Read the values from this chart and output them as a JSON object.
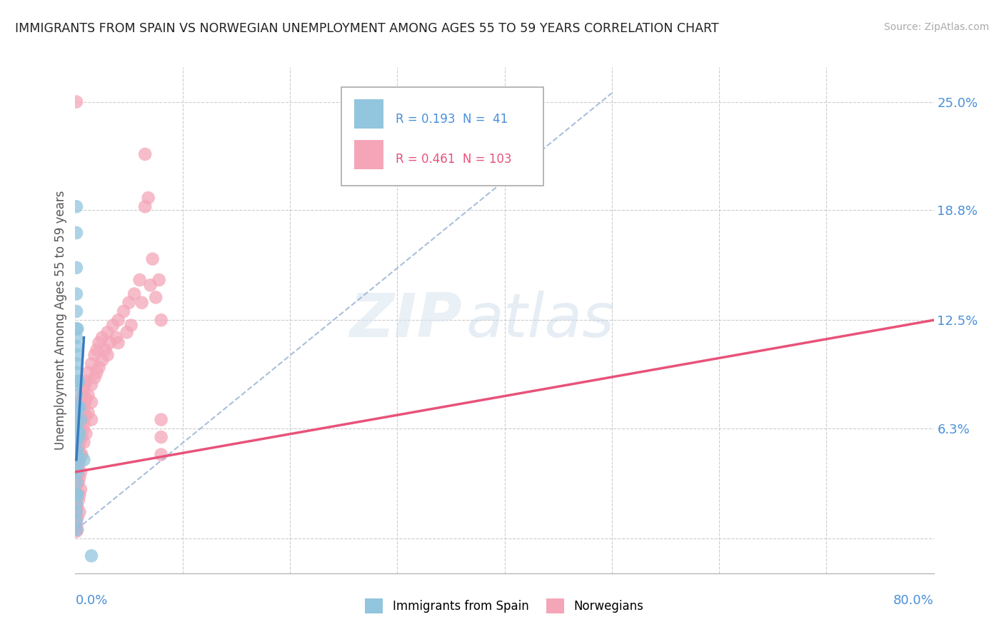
{
  "title": "IMMIGRANTS FROM SPAIN VS NORWEGIAN UNEMPLOYMENT AMONG AGES 55 TO 59 YEARS CORRELATION CHART",
  "source": "Source: ZipAtlas.com",
  "ylabel": "Unemployment Among Ages 55 to 59 years",
  "right_yticks": [
    0.0,
    0.063,
    0.125,
    0.188,
    0.25
  ],
  "right_yticklabels": [
    "",
    "6.3%",
    "12.5%",
    "18.8%",
    "25.0%"
  ],
  "xlim": [
    0.0,
    0.8
  ],
  "ylim": [
    -0.02,
    0.27
  ],
  "legend_blue_r": "R = 0.193",
  "legend_blue_n": "N =  41",
  "legend_pink_r": "R = 0.461",
  "legend_pink_n": "N = 103",
  "blue_color": "#92c5de",
  "pink_color": "#f4a6b8",
  "blue_line_color": "#3a7abf",
  "pink_line_color": "#e8527a",
  "blue_dashed_color": "#a0b8d8",
  "blue_scatter": [
    [
      0.001,
      0.19
    ],
    [
      0.001,
      0.175
    ],
    [
      0.001,
      0.155
    ],
    [
      0.001,
      0.14
    ],
    [
      0.001,
      0.13
    ],
    [
      0.001,
      0.12
    ],
    [
      0.001,
      0.115
    ],
    [
      0.001,
      0.11
    ],
    [
      0.001,
      0.1
    ],
    [
      0.001,
      0.095
    ],
    [
      0.001,
      0.088
    ],
    [
      0.001,
      0.082
    ],
    [
      0.001,
      0.075
    ],
    [
      0.001,
      0.068
    ],
    [
      0.001,
      0.062
    ],
    [
      0.001,
      0.055
    ],
    [
      0.001,
      0.048
    ],
    [
      0.001,
      0.04
    ],
    [
      0.001,
      0.032
    ],
    [
      0.001,
      0.025
    ],
    [
      0.001,
      0.02
    ],
    [
      0.001,
      0.015
    ],
    [
      0.001,
      0.01
    ],
    [
      0.001,
      0.005
    ],
    [
      0.002,
      0.12
    ],
    [
      0.002,
      0.105
    ],
    [
      0.002,
      0.09
    ],
    [
      0.002,
      0.075
    ],
    [
      0.002,
      0.062
    ],
    [
      0.002,
      0.05
    ],
    [
      0.002,
      0.038
    ],
    [
      0.002,
      0.025
    ],
    [
      0.003,
      0.09
    ],
    [
      0.003,
      0.075
    ],
    [
      0.003,
      0.058
    ],
    [
      0.003,
      0.045
    ],
    [
      0.004,
      0.075
    ],
    [
      0.004,
      0.06
    ],
    [
      0.005,
      0.068
    ],
    [
      0.008,
      0.045
    ],
    [
      0.015,
      -0.01
    ]
  ],
  "pink_scatter": [
    [
      0.001,
      0.25
    ],
    [
      0.001,
      0.068
    ],
    [
      0.001,
      0.058
    ],
    [
      0.001,
      0.052
    ],
    [
      0.001,
      0.048
    ],
    [
      0.001,
      0.043
    ],
    [
      0.001,
      0.038
    ],
    [
      0.001,
      0.034
    ],
    [
      0.001,
      0.03
    ],
    [
      0.001,
      0.026
    ],
    [
      0.001,
      0.022
    ],
    [
      0.001,
      0.018
    ],
    [
      0.001,
      0.015
    ],
    [
      0.001,
      0.012
    ],
    [
      0.001,
      0.008
    ],
    [
      0.001,
      0.004
    ],
    [
      0.002,
      0.07
    ],
    [
      0.002,
      0.06
    ],
    [
      0.002,
      0.052
    ],
    [
      0.002,
      0.045
    ],
    [
      0.002,
      0.038
    ],
    [
      0.002,
      0.032
    ],
    [
      0.002,
      0.025
    ],
    [
      0.002,
      0.018
    ],
    [
      0.002,
      0.012
    ],
    [
      0.002,
      0.005
    ],
    [
      0.003,
      0.072
    ],
    [
      0.003,
      0.062
    ],
    [
      0.003,
      0.052
    ],
    [
      0.003,
      0.042
    ],
    [
      0.003,
      0.032
    ],
    [
      0.003,
      0.022
    ],
    [
      0.004,
      0.075
    ],
    [
      0.004,
      0.065
    ],
    [
      0.004,
      0.055
    ],
    [
      0.004,
      0.045
    ],
    [
      0.004,
      0.035
    ],
    [
      0.004,
      0.025
    ],
    [
      0.004,
      0.015
    ],
    [
      0.005,
      0.078
    ],
    [
      0.005,
      0.068
    ],
    [
      0.005,
      0.058
    ],
    [
      0.005,
      0.048
    ],
    [
      0.005,
      0.038
    ],
    [
      0.005,
      0.028
    ],
    [
      0.006,
      0.08
    ],
    [
      0.006,
      0.068
    ],
    [
      0.006,
      0.058
    ],
    [
      0.006,
      0.048
    ],
    [
      0.007,
      0.082
    ],
    [
      0.007,
      0.072
    ],
    [
      0.007,
      0.062
    ],
    [
      0.008,
      0.085
    ],
    [
      0.008,
      0.075
    ],
    [
      0.008,
      0.065
    ],
    [
      0.008,
      0.055
    ],
    [
      0.009,
      0.088
    ],
    [
      0.009,
      0.078
    ],
    [
      0.01,
      0.09
    ],
    [
      0.01,
      0.08
    ],
    [
      0.01,
      0.07
    ],
    [
      0.01,
      0.06
    ],
    [
      0.012,
      0.095
    ],
    [
      0.012,
      0.082
    ],
    [
      0.012,
      0.072
    ],
    [
      0.015,
      0.1
    ],
    [
      0.015,
      0.088
    ],
    [
      0.015,
      0.078
    ],
    [
      0.015,
      0.068
    ],
    [
      0.018,
      0.105
    ],
    [
      0.018,
      0.092
    ],
    [
      0.02,
      0.108
    ],
    [
      0.02,
      0.095
    ],
    [
      0.022,
      0.112
    ],
    [
      0.022,
      0.098
    ],
    [
      0.025,
      0.115
    ],
    [
      0.025,
      0.102
    ],
    [
      0.028,
      0.108
    ],
    [
      0.03,
      0.118
    ],
    [
      0.03,
      0.105
    ],
    [
      0.032,
      0.112
    ],
    [
      0.035,
      0.122
    ],
    [
      0.038,
      0.115
    ],
    [
      0.04,
      0.125
    ],
    [
      0.04,
      0.112
    ],
    [
      0.045,
      0.13
    ],
    [
      0.048,
      0.118
    ],
    [
      0.05,
      0.135
    ],
    [
      0.052,
      0.122
    ],
    [
      0.055,
      0.14
    ],
    [
      0.06,
      0.148
    ],
    [
      0.062,
      0.135
    ],
    [
      0.065,
      0.19
    ],
    [
      0.065,
      0.22
    ],
    [
      0.068,
      0.195
    ],
    [
      0.07,
      0.145
    ],
    [
      0.072,
      0.16
    ],
    [
      0.075,
      0.138
    ],
    [
      0.078,
      0.148
    ],
    [
      0.08,
      0.125
    ],
    [
      0.08,
      0.068
    ],
    [
      0.08,
      0.058
    ],
    [
      0.08,
      0.048
    ]
  ],
  "blue_solid_line": {
    "x0": 0.001,
    "x1": 0.008,
    "y0": 0.045,
    "y1": 0.115
  },
  "blue_dashed_line": {
    "x0": 0.001,
    "x1": 0.5,
    "y0": 0.005,
    "y1": 0.255
  },
  "pink_line": {
    "x0": 0.0,
    "x1": 0.8,
    "y0": 0.038,
    "y1": 0.125
  },
  "watermark_zip": "ZIP",
  "watermark_atlas": "atlas",
  "background_color": "#ffffff",
  "grid_color": "#cccccc"
}
